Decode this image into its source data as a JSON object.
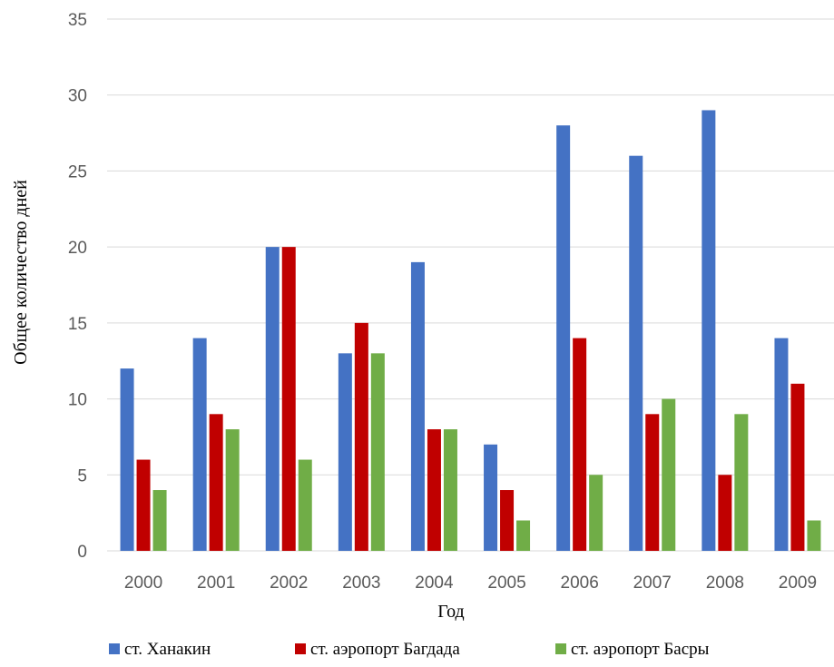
{
  "chart_data": {
    "type": "bar",
    "title": "",
    "xlabel": "Год",
    "ylabel": "Общее количество дней",
    "ylim": [
      0,
      35
    ],
    "yticks": [
      0,
      5,
      10,
      15,
      20,
      25,
      30,
      35
    ],
    "grid": true,
    "legend_position": "bottom",
    "categories": [
      "2000",
      "2001",
      "2002",
      "2003",
      "2004",
      "2005",
      "2006",
      "2007",
      "2008",
      "2009"
    ],
    "series": [
      {
        "name": "ст. Ханакин",
        "color": "#4472c4",
        "values": [
          12,
          14,
          20,
          13,
          19,
          7,
          28,
          26,
          29,
          14
        ]
      },
      {
        "name": "ст. аэропорт Багдада",
        "color": "#c00000",
        "values": [
          6,
          9,
          20,
          15,
          8,
          4,
          14,
          9,
          5,
          11
        ]
      },
      {
        "name": "ст. аэропорт Басры",
        "color": "#70ad47",
        "values": [
          4,
          8,
          6,
          13,
          8,
          2,
          5,
          10,
          9,
          2
        ]
      }
    ]
  }
}
